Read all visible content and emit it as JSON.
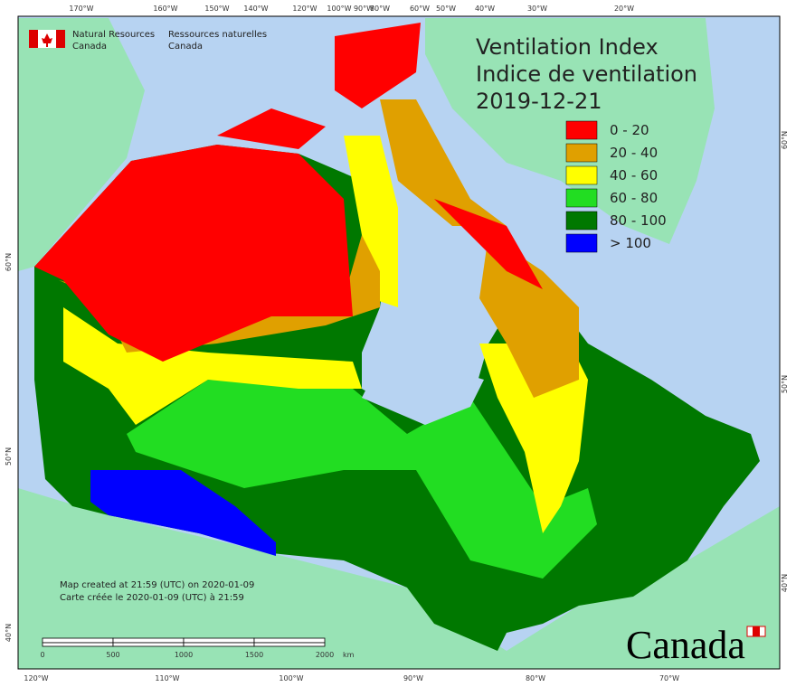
{
  "header": {
    "org_en": "Natural Resources",
    "org_en_2": "Canada",
    "org_fr": "Ressources naturelles",
    "org_fr_2": "Canada"
  },
  "title": [
    "Ventilation Index",
    "Indice de ventilation",
    "2019-12-21"
  ],
  "legend": [
    {
      "label": "0 - 20",
      "color": "#ff0000"
    },
    {
      "label": "20 - 40",
      "color": "#e0a000"
    },
    {
      "label": "40 - 60",
      "color": "#ffff00"
    },
    {
      "label": "60 - 80",
      "color": "#22dd22"
    },
    {
      "label": "80 - 100",
      "color": "#007800"
    },
    {
      "label": "> 100",
      "color": "#0000ff"
    }
  ],
  "graticule": {
    "top": [
      "170°W",
      "160°W",
      "150°W",
      "140°W",
      "120°W",
      "100°W",
      "90°W",
      "80°W",
      "60°W",
      "50°W",
      "40°W",
      "30°W",
      "20°W"
    ],
    "bottom": [
      "120°W",
      "110°W",
      "100°W",
      "90°W",
      "80°W",
      "70°W"
    ],
    "left": [
      "60°N",
      "50°N",
      "40°N"
    ],
    "right": [
      "60°N",
      "50°N",
      "40°N"
    ]
  },
  "footer": {
    "created_en": "Map created at 21:59 (UTC) on 2020-01-09",
    "created_fr": "Carte créée le 2020-01-09 (UTC) à 21:59"
  },
  "scale_bar": {
    "labels": [
      "0",
      "500",
      "1000",
      "1500",
      "2000"
    ],
    "unit": "km"
  },
  "wordmark": "Canada"
}
